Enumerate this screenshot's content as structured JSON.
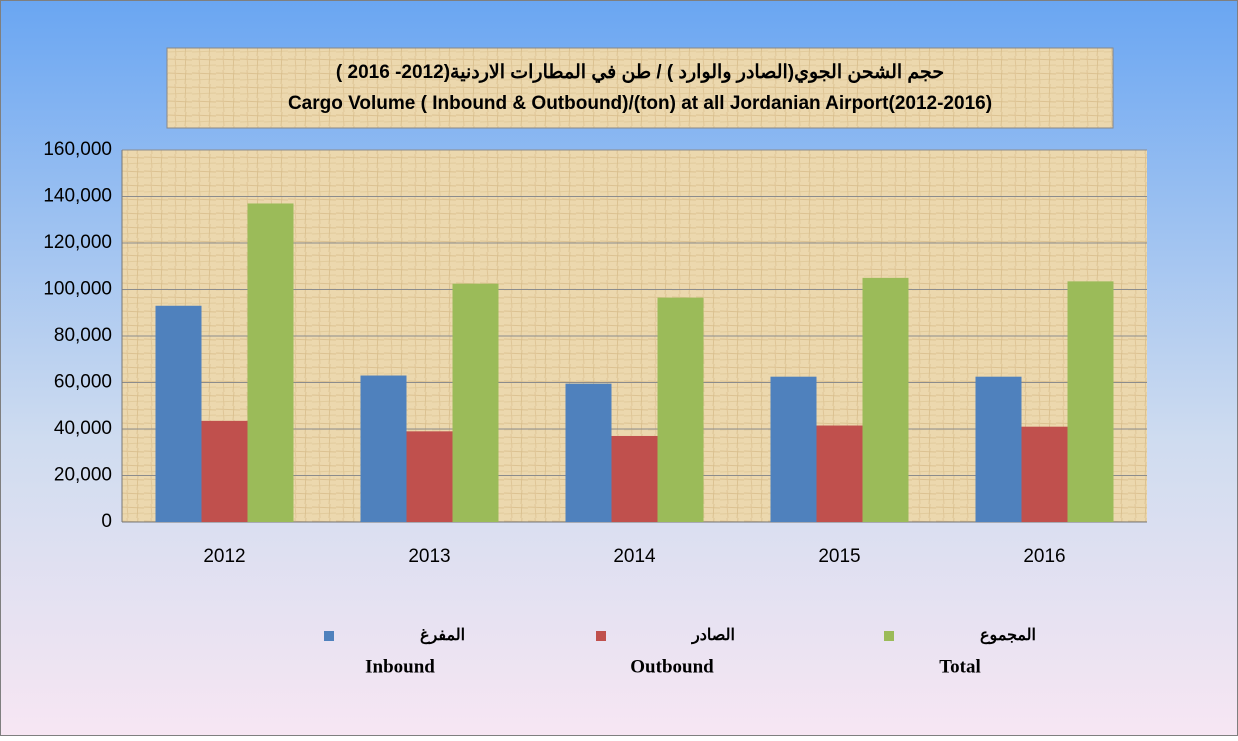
{
  "chart_data": {
    "type": "bar",
    "title": "حجم الشحن الجوي(الصادر والوارد ) / طن في المطارات الاردنية(2012- 2016 )",
    "subtitle": "Cargo Volume ( Inbound & Outbound)/(ton) at all Jordanian Airport(2012-2016)",
    "categories": [
      "2012",
      "2013",
      "2014",
      "2015",
      "2016"
    ],
    "series": [
      {
        "name": "المفرغ",
        "label": "Inbound",
        "color": "#4f81bd",
        "values": [
          93000,
          63000,
          59500,
          62500,
          62500
        ]
      },
      {
        "name": "الصادر",
        "label": "Outbound",
        "color": "#c0504d",
        "values": [
          43500,
          39000,
          37000,
          41500,
          41000
        ]
      },
      {
        "name": "المجموع",
        "label": "Total",
        "color": "#9bbb59",
        "values": [
          137000,
          102500,
          96500,
          105000,
          103500
        ]
      }
    ],
    "ylim": [
      0,
      160000
    ],
    "yticks": [
      0,
      {
        "value": 20000,
        "label": "20,000"
      },
      {
        "value": 40000,
        "label": "40,000"
      },
      {
        "value": 60000,
        "label": "60,000"
      },
      {
        "value": 80000,
        "label": "80,000"
      },
      {
        "value": 100000,
        "label": "100,000"
      },
      {
        "value": 120000,
        "label": "120,000"
      },
      {
        "value": 140000,
        "label": "140,000"
      },
      {
        "value": 160000,
        "label": "160,000"
      }
    ],
    "grid": true,
    "legend": "bottom"
  }
}
